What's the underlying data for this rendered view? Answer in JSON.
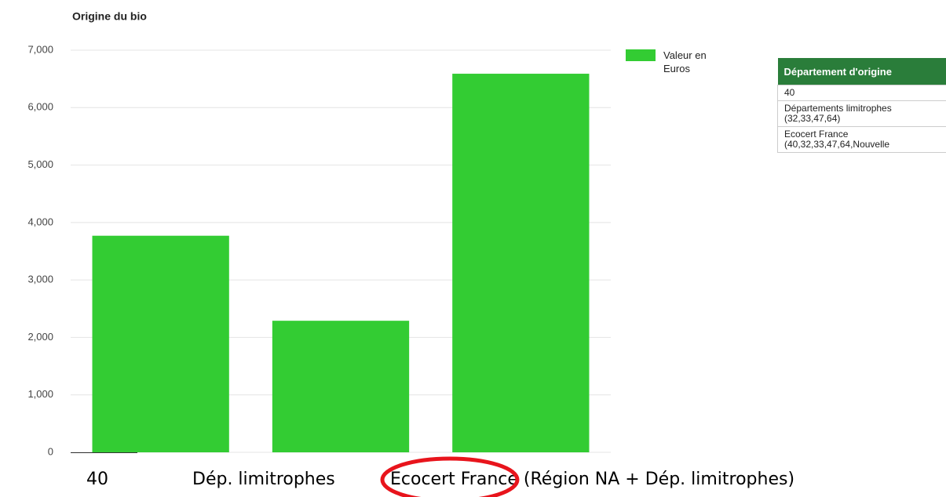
{
  "chart_data": {
    "type": "bar",
    "title": "Origine du bio",
    "categories": [
      "40",
      "Dép. limitrophes",
      "Ecocert France (Région NA + Dép. limitrophes)"
    ],
    "series": [
      {
        "name": "Valeur en Euros",
        "color": "#33cc33",
        "values": [
          3770,
          2290,
          6590
        ]
      }
    ],
    "ylim": [
      0,
      7000
    ],
    "yticks": [
      0,
      {
        "value": 1000,
        "label": "1,000"
      },
      {
        "value": 2000,
        "label": "2,000"
      },
      {
        "value": 3000,
        "label": "3,000"
      },
      {
        "value": 4000,
        "label": "4,000"
      },
      {
        "value": 5000,
        "label": "5,000"
      },
      {
        "value": 6000,
        "label": "6,000"
      },
      {
        "value": 7000,
        "label": "7,000"
      }
    ],
    "grid": true
  },
  "table": {
    "header": "Département d'origine",
    "rows": [
      "40",
      "Départements limitrophes (32,33,47,64)",
      "Ecocert France (40,32,33,47,64,Nouvelle"
    ]
  }
}
